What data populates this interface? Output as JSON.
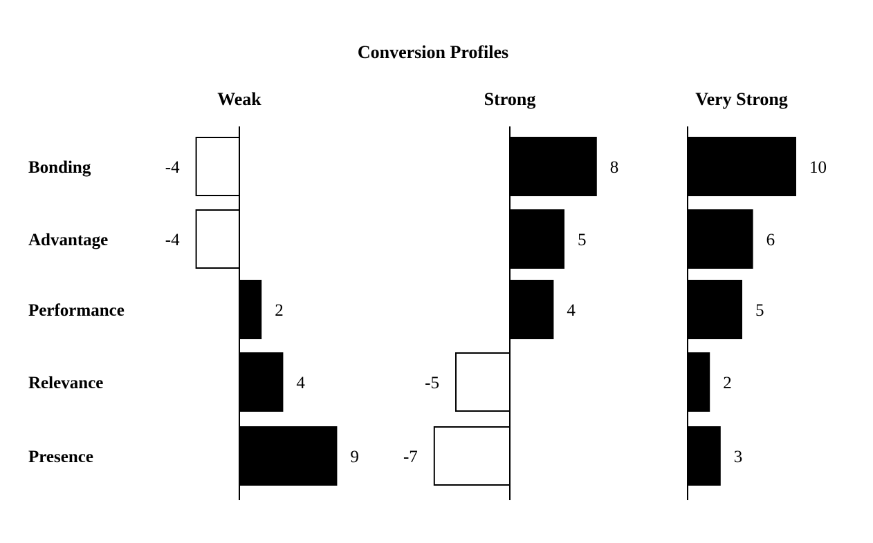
{
  "chart_data": {
    "type": "bar",
    "orientation": "horizontal",
    "title": "Conversion Profiles",
    "categories": [
      "Bonding",
      "Advantage",
      "Performance",
      "Relevance",
      "Presence"
    ],
    "series": [
      {
        "name": "Weak",
        "values": [
          -4,
          -4,
          2,
          4,
          9
        ]
      },
      {
        "name": "Strong",
        "values": [
          8,
          5,
          4,
          -5,
          -7
        ]
      },
      {
        "name": "Very Strong",
        "values": [
          10,
          6,
          5,
          2,
          3
        ]
      }
    ],
    "colors": {
      "positive": "#000000",
      "negative": "#ffffff",
      "outline": "#000000"
    },
    "grid": false,
    "legend": "none"
  }
}
